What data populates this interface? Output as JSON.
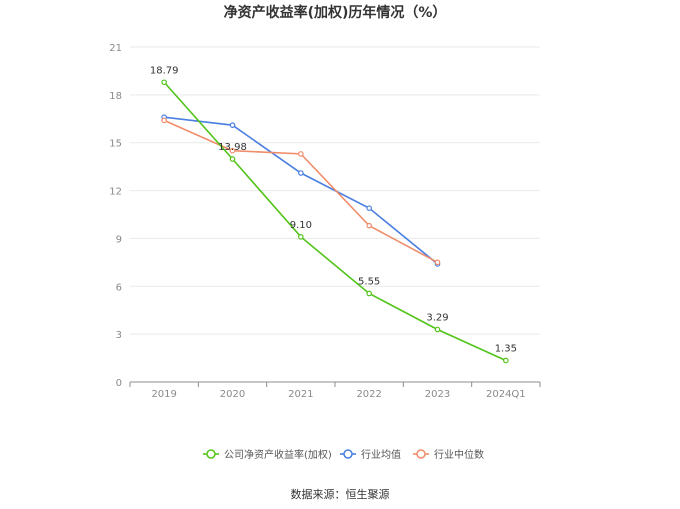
{
  "chart_data": {
    "type": "line",
    "title": "净资产收益率(加权)历年情况（%）",
    "source": "数据来源：恒生聚源",
    "categories": [
      "2019",
      "2020",
      "2021",
      "2022",
      "2023",
      "2024Q1"
    ],
    "ylim": [
      0,
      21
    ],
    "yticks": [
      0,
      3,
      6,
      9,
      12,
      15,
      18,
      21
    ],
    "grid": true,
    "legend_position": "bottom",
    "series": [
      {
        "name": "公司净资产收益率(加权)",
        "color": "#52c41a",
        "values": [
          18.79,
          13.98,
          9.1,
          5.55,
          3.29,
          1.35
        ],
        "labels": [
          "18.79",
          "13.98",
          "9.10",
          "5.55",
          "3.29",
          "1.35"
        ]
      },
      {
        "name": "行业均值",
        "color": "#4a7fe0",
        "values": [
          16.6,
          16.1,
          13.1,
          10.9,
          7.4,
          null
        ],
        "labels": null
      },
      {
        "name": "行业中位数",
        "color": "#f08c6a",
        "values": [
          16.4,
          14.5,
          14.3,
          9.8,
          7.5,
          null
        ],
        "labels": null
      }
    ]
  }
}
